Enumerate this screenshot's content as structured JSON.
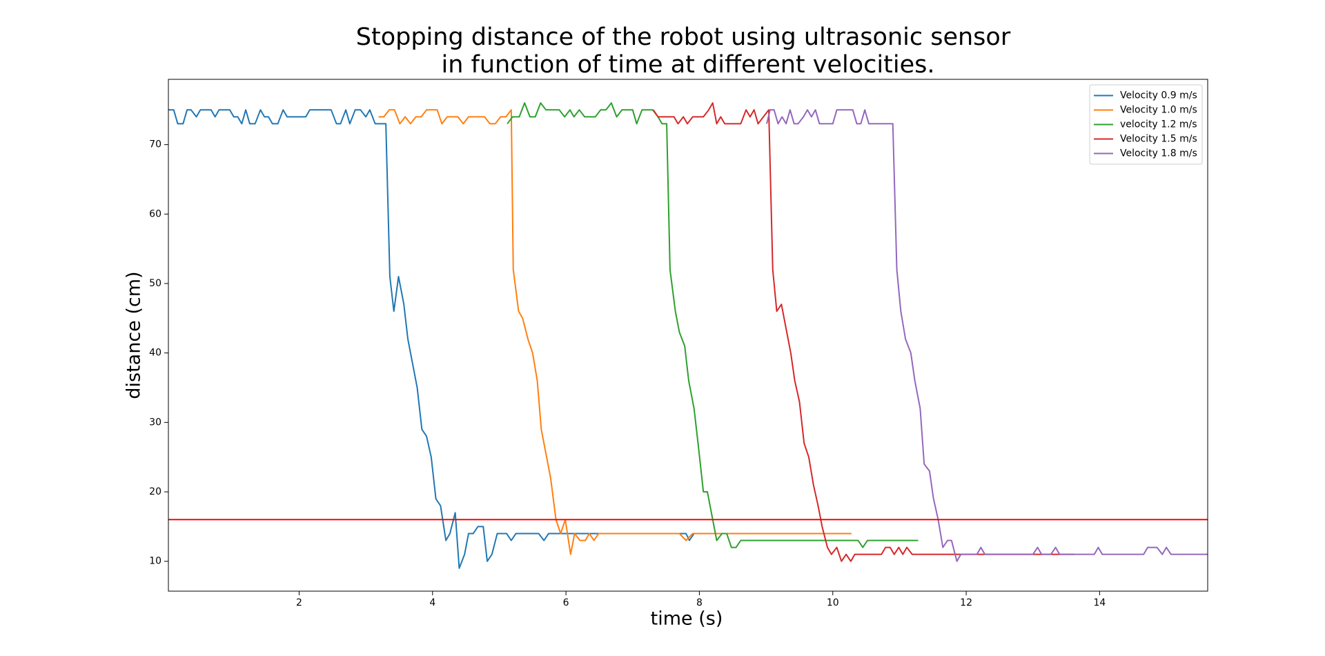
{
  "chart_data": {
    "type": "line",
    "title": [
      "Stopping distance of the robot using ultrasonic sensor",
      "in function of time at different velocities."
    ],
    "x_label": "time (s)",
    "y_label": "distance (cm)",
    "xlim": [
      0.04,
      15.62
    ],
    "ylim": [
      5.7,
      79.4
    ],
    "xticks": [
      2,
      4,
      6,
      8,
      10,
      12,
      14
    ],
    "yticks": [
      10,
      20,
      30,
      40,
      50,
      60,
      70
    ],
    "grid": false,
    "legend": "upper right",
    "hline": {
      "y": 16,
      "color": "#ff0000"
    },
    "series": [
      {
        "name": "Velocity 0.9 m/s",
        "color": "#1f77b4",
        "x": [
          0.04,
          0.12,
          0.18,
          0.26,
          0.32,
          0.38,
          0.46,
          0.52,
          0.6,
          0.68,
          0.74,
          0.8,
          0.88,
          0.96,
          1.02,
          1.08,
          1.14,
          1.2,
          1.26,
          1.34,
          1.42,
          1.48,
          1.54,
          1.6,
          1.68,
          1.76,
          1.82,
          1.9,
          2.0,
          2.1,
          2.16,
          2.24,
          2.32,
          2.4,
          2.48,
          2.56,
          2.62,
          2.7,
          2.76,
          2.84,
          2.92,
          3.0,
          3.06,
          3.14,
          3.22,
          3.3,
          3.36,
          3.42,
          3.49,
          3.57,
          3.63,
          3.71,
          3.77,
          3.84,
          3.91,
          3.98,
          4.05,
          4.12,
          4.2,
          4.26,
          4.34,
          4.4,
          4.48,
          4.54,
          4.61,
          4.68,
          4.76,
          4.82,
          4.89,
          4.97,
          5.11,
          5.18,
          5.25,
          5.59,
          5.67,
          5.74,
          6.5,
          7.5,
          7.8,
          7.85,
          7.92,
          8.5,
          9.1
        ],
        "values": [
          75,
          75,
          73,
          73,
          75,
          75,
          74,
          75,
          75,
          75,
          74,
          75,
          75,
          75,
          74,
          74,
          73,
          75,
          73,
          73,
          75,
          74,
          74,
          73,
          73,
          75,
          74,
          74,
          74,
          74,
          75,
          75,
          75,
          75,
          75,
          73,
          73,
          75,
          73,
          75,
          75,
          74,
          75,
          73,
          73,
          73,
          51,
          46,
          51,
          47,
          42,
          38,
          35,
          29,
          28,
          25,
          19,
          18,
          13,
          14,
          17,
          9,
          11,
          14,
          14,
          15,
          15,
          10,
          11,
          14,
          14,
          13,
          14,
          14,
          13,
          14,
          14,
          14,
          14,
          13,
          14,
          14,
          14
        ]
      },
      {
        "name": "Velocity 1.0 m/s",
        "color": "#ff7f0e",
        "x": [
          3.19,
          3.27,
          3.35,
          3.43,
          3.51,
          3.59,
          3.67,
          3.75,
          3.83,
          3.91,
          3.99,
          4.07,
          4.14,
          4.22,
          4.3,
          4.38,
          4.46,
          4.54,
          4.62,
          4.7,
          4.78,
          4.86,
          4.94,
          5.02,
          5.1,
          5.18,
          5.21,
          5.29,
          5.35,
          5.43,
          5.5,
          5.57,
          5.63,
          5.71,
          5.77,
          5.85,
          5.92,
          5.99,
          6.07,
          6.13,
          6.21,
          6.29,
          6.35,
          6.42,
          6.49,
          7.0,
          7.7,
          7.8,
          7.9,
          8.5,
          9.5,
          10.28
        ],
        "values": [
          74,
          74,
          75,
          75,
          73,
          74,
          73,
          74,
          74,
          75,
          75,
          75,
          73,
          74,
          74,
          74,
          73,
          74,
          74,
          74,
          74,
          73,
          73,
          74,
          74,
          75,
          52,
          46,
          45,
          42,
          40,
          36,
          29,
          25,
          22,
          16,
          14,
          16,
          11,
          14,
          13,
          13,
          14,
          13,
          14,
          14,
          14,
          13,
          14,
          14,
          14,
          14
        ]
      },
      {
        "name": "velocity 1.2 m/s",
        "color": "#2ca02c",
        "x": [
          5.12,
          5.2,
          5.3,
          5.38,
          5.46,
          5.54,
          5.62,
          5.7,
          5.8,
          5.9,
          5.98,
          6.06,
          6.12,
          6.2,
          6.28,
          6.36,
          6.44,
          6.52,
          6.6,
          6.68,
          6.76,
          6.84,
          6.92,
          7.0,
          7.06,
          7.14,
          7.22,
          7.3,
          7.38,
          7.44,
          7.51,
          7.56,
          7.64,
          7.7,
          7.78,
          7.84,
          7.92,
          7.98,
          8.06,
          8.12,
          8.2,
          8.26,
          8.34,
          8.41,
          8.48,
          8.55,
          8.62,
          10.38,
          10.45,
          10.52,
          11.28
        ],
        "values": [
          73,
          74,
          74,
          76,
          74,
          74,
          76,
          75,
          75,
          75,
          74,
          75,
          74,
          75,
          74,
          74,
          74,
          75,
          75,
          76,
          74,
          75,
          75,
          75,
          73,
          75,
          75,
          75,
          74,
          73,
          73,
          52,
          46,
          43,
          41,
          36,
          32,
          27,
          20,
          20,
          16,
          13,
          14,
          14,
          12,
          12,
          13,
          13,
          12,
          13,
          13
        ]
      },
      {
        "name": "Velocity 1.5 m/s",
        "color": "#d62728",
        "x": [
          7.31,
          7.38,
          7.46,
          7.54,
          7.62,
          7.68,
          7.76,
          7.82,
          7.9,
          7.98,
          8.06,
          8.14,
          8.2,
          8.26,
          8.32,
          8.38,
          8.46,
          8.54,
          8.62,
          8.7,
          8.76,
          8.82,
          8.88,
          8.96,
          9.04,
          9.1,
          9.16,
          9.23,
          9.29,
          9.37,
          9.43,
          9.5,
          9.57,
          9.64,
          9.71,
          9.78,
          9.84,
          9.92,
          9.98,
          10.06,
          10.13,
          10.2,
          10.27,
          10.33,
          10.73,
          10.79,
          10.86,
          10.92,
          10.99,
          11.05,
          11.11,
          11.19,
          13.62
        ],
        "values": [
          75,
          74,
          74,
          74,
          74,
          73,
          74,
          73,
          74,
          74,
          74,
          75,
          76,
          73,
          74,
          73,
          73,
          73,
          73,
          75,
          74,
          75,
          73,
          74,
          75,
          52,
          46,
          47,
          44,
          40,
          36,
          33,
          27,
          25,
          21,
          18,
          15,
          12,
          11,
          12,
          10,
          11,
          10,
          11,
          11,
          12,
          12,
          11,
          12,
          11,
          12,
          11,
          11
        ]
      },
      {
        "name": "Velocity 1.8 m/s",
        "color": "#9467bd",
        "x": [
          9.01,
          9.06,
          9.12,
          9.18,
          9.24,
          9.3,
          9.36,
          9.42,
          9.48,
          9.56,
          9.62,
          9.68,
          9.74,
          9.8,
          9.86,
          9.94,
          10.0,
          10.06,
          10.14,
          10.22,
          10.3,
          10.36,
          10.42,
          10.48,
          10.54,
          10.62,
          10.7,
          10.78,
          10.9,
          10.96,
          11.02,
          11.09,
          11.17,
          11.23,
          11.31,
          11.37,
          11.45,
          11.51,
          11.58,
          11.65,
          11.72,
          11.78,
          11.86,
          11.92,
          12.16,
          12.22,
          12.28,
          13.0,
          13.07,
          13.13,
          13.27,
          13.34,
          13.4,
          13.92,
          13.98,
          14.04,
          14.66,
          14.72,
          14.86,
          14.94,
          15.0,
          15.07,
          15.62
        ],
        "values": [
          73,
          75,
          75,
          73,
          74,
          73,
          75,
          73,
          73,
          74,
          75,
          74,
          75,
          73,
          73,
          73,
          73,
          75,
          75,
          75,
          75,
          73,
          73,
          75,
          73,
          73,
          73,
          73,
          73,
          52,
          46,
          42,
          40,
          36,
          32,
          24,
          23,
          19,
          16,
          12,
          13,
          13,
          10,
          11,
          11,
          12,
          11,
          11,
          12,
          11,
          11,
          12,
          11,
          11,
          12,
          11,
          11,
          12,
          12,
          11,
          12,
          11,
          11
        ]
      }
    ]
  }
}
